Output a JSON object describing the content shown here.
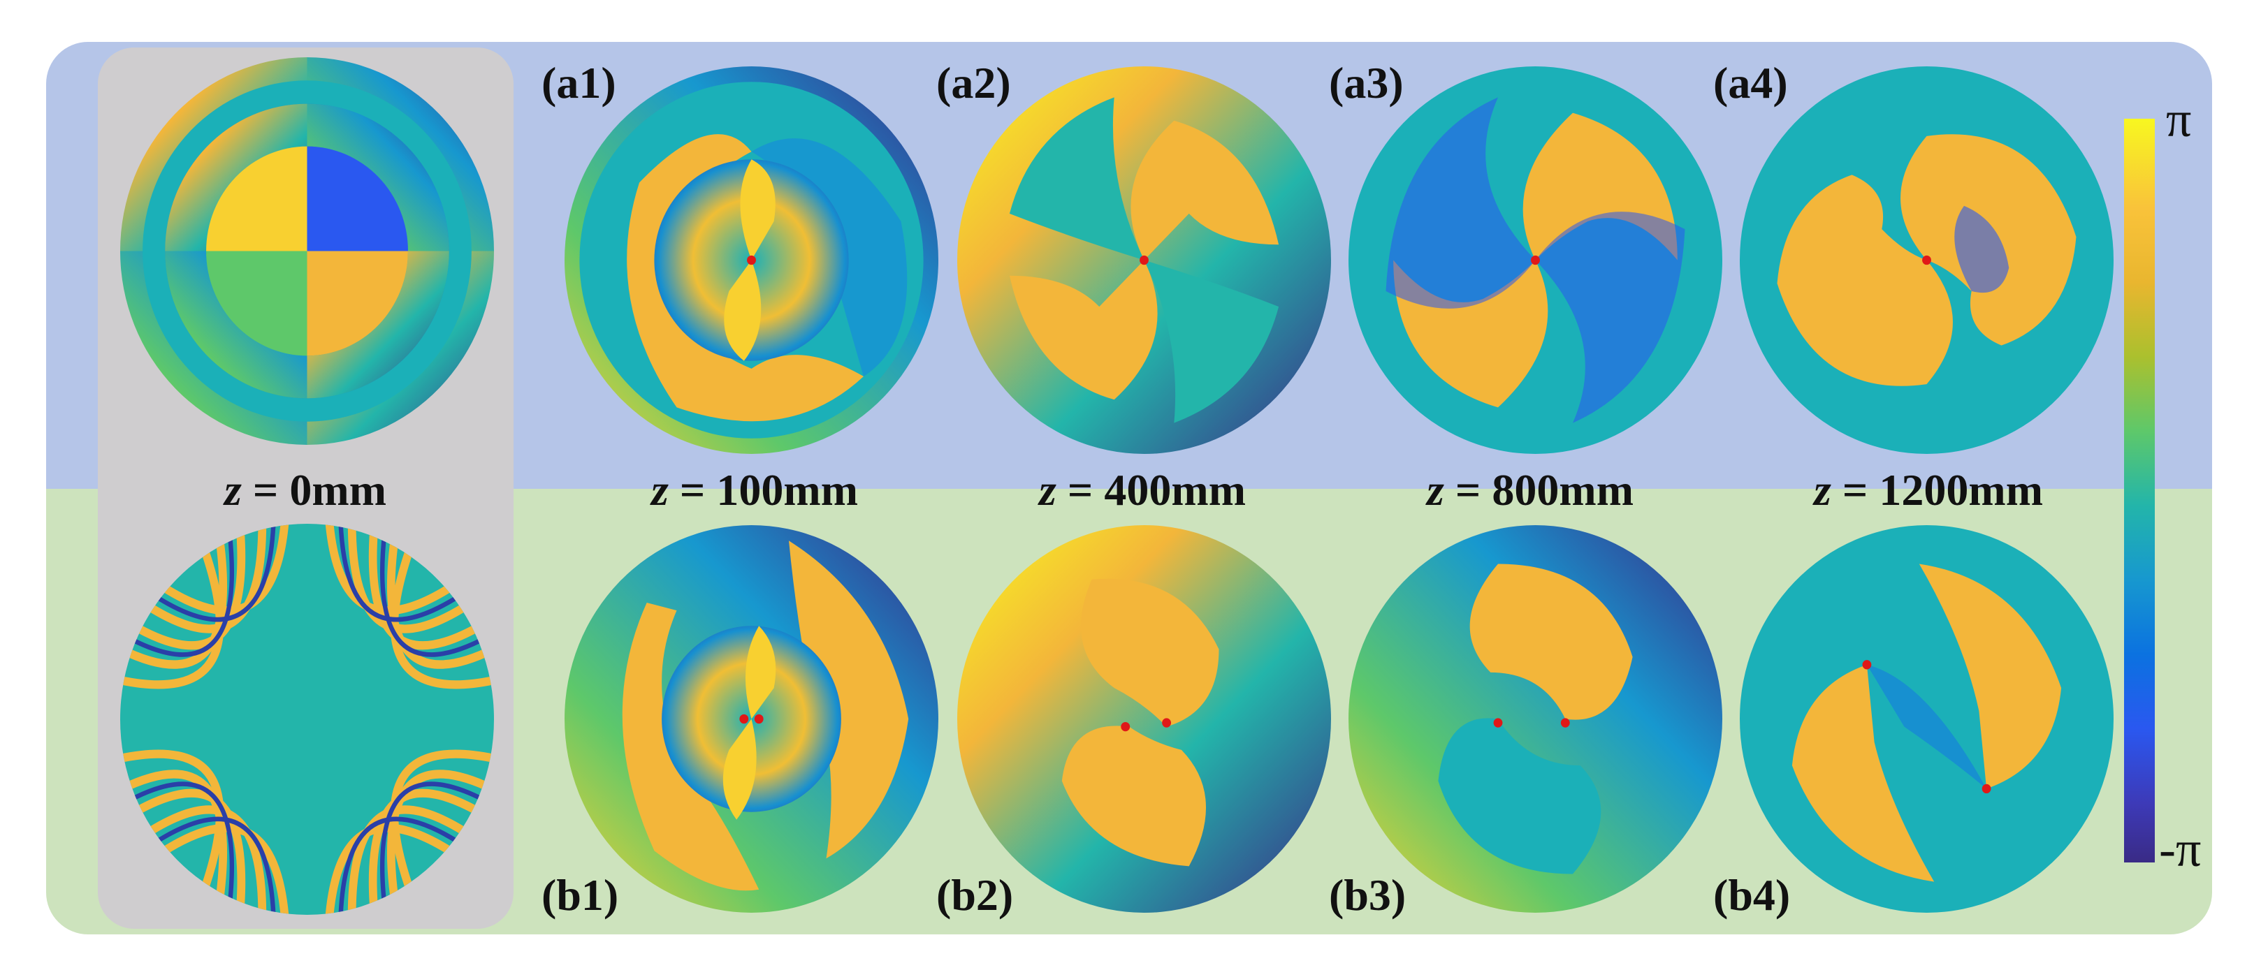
{
  "colorbar": {
    "max_label": "π",
    "min_label": "-π",
    "colors": [
      "#f8f720",
      "#f9c33a",
      "#abc02e",
      "#23b5aa",
      "#0b72e0",
      "#3a2b86"
    ]
  },
  "input": {
    "z_label_var": "z",
    "z_label_value": " = 0mm"
  },
  "panels_top": [
    {
      "label": "(a1)"
    },
    {
      "label": "(a2)"
    },
    {
      "label": "(a3)"
    },
    {
      "label": "(a4)"
    }
  ],
  "panels_bottom": [
    {
      "label": "(b1)"
    },
    {
      "label": "(b2)"
    },
    {
      "label": "(b3)"
    },
    {
      "label": "(b4)"
    }
  ],
  "z_labels": [
    {
      "var": "z",
      "value": " = 100mm"
    },
    {
      "var": "z",
      "value": " = 400mm"
    },
    {
      "var": "z",
      "value": " = 800mm"
    },
    {
      "var": "z",
      "value": " = 1200mm"
    }
  ],
  "colors": {
    "top_band": "#b5c5e8",
    "bottom_band": "#cde3bd",
    "input_box": "#cfcdcf",
    "singularity": "#e01818"
  }
}
